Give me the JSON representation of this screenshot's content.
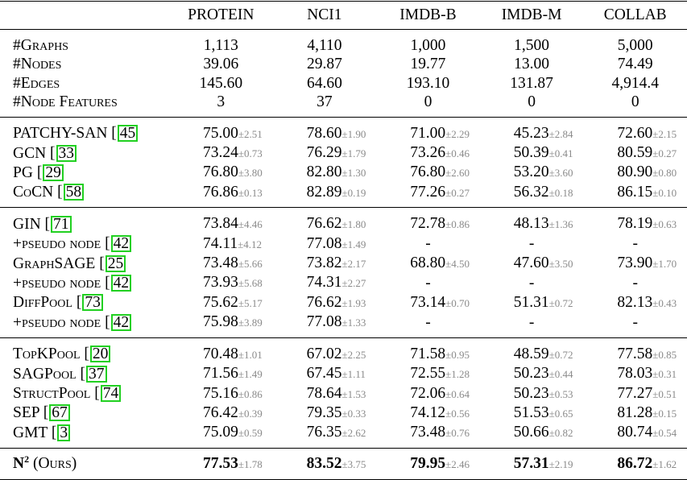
{
  "columns": [
    "PROTEIN",
    "NCI1",
    "IMDB-B",
    "IMDB-M",
    "COLLAB"
  ],
  "stats": [
    {
      "label": "#Graphs",
      "values": [
        "1,113",
        "4,110",
        "1,000",
        "1,500",
        "5,000"
      ]
    },
    {
      "label": "#Nodes",
      "values": [
        "39.06",
        "29.87",
        "19.77",
        "13.00",
        "74.49"
      ]
    },
    {
      "label": "#Edges",
      "values": [
        "145.60",
        "64.60",
        "193.10",
        "131.87",
        "4,914.4"
      ]
    },
    {
      "label": "#Node Features",
      "values": [
        "3",
        "37",
        "0",
        "0",
        "0"
      ]
    }
  ],
  "groups": [
    {
      "rows": [
        {
          "name": "PATCHY-SAN",
          "ref": "45",
          "cells": [
            [
              "75.00",
              "±2.51"
            ],
            [
              "78.60",
              "±1.90"
            ],
            [
              "71.00",
              "±2.29"
            ],
            [
              "45.23",
              "±2.84"
            ],
            [
              "72.60",
              "±2.15"
            ]
          ]
        },
        {
          "name": "GCN",
          "ref": "33",
          "cells": [
            [
              "73.24",
              "±0.73"
            ],
            [
              "76.29",
              "±1.79"
            ],
            [
              "73.26",
              "±0.46"
            ],
            [
              "50.39",
              "±0.41"
            ],
            [
              "80.59",
              "±0.27"
            ]
          ]
        },
        {
          "name": "PG",
          "ref": "29",
          "cells": [
            [
              "76.80",
              "±3.80"
            ],
            [
              "82.80",
              "±1.30"
            ],
            [
              "76.80",
              "±2.60"
            ],
            [
              "53.20",
              "±3.60"
            ],
            [
              "80.90",
              "±0.80"
            ]
          ]
        },
        {
          "name": "CoCN",
          "ref": "58",
          "cells": [
            [
              "76.86",
              "±0.13"
            ],
            [
              "82.89",
              "±0.19"
            ],
            [
              "77.26",
              "±0.27"
            ],
            [
              "56.32",
              "±0.18"
            ],
            [
              "86.15",
              "±0.10"
            ]
          ]
        }
      ]
    },
    {
      "rows": [
        {
          "name": "GIN",
          "ref": "71",
          "cells": [
            [
              "73.84",
              "±4.46"
            ],
            [
              "76.62",
              "±1.80"
            ],
            [
              "72.78",
              "±0.86"
            ],
            [
              "48.13",
              "±1.36"
            ],
            [
              "78.19",
              "±0.63"
            ]
          ]
        },
        {
          "name": "+pseudo node",
          "ref": "42",
          "cells": [
            [
              "74.11",
              "±4.12"
            ],
            [
              "77.08",
              "±1.49"
            ],
            [
              "-",
              ""
            ],
            [
              "-",
              ""
            ],
            [
              "-",
              ""
            ]
          ]
        },
        {
          "name": "GraphSAGE",
          "ref": "25",
          "cells": [
            [
              "73.48",
              "±5.66"
            ],
            [
              "73.82",
              "±2.17"
            ],
            [
              "68.80",
              "±4.50"
            ],
            [
              "47.60",
              "±3.50"
            ],
            [
              "73.90",
              "±1.70"
            ]
          ]
        },
        {
          "name": "+pseudo node",
          "ref": "42",
          "cells": [
            [
              "73.93",
              "±5.68"
            ],
            [
              "74.31",
              "±2.27"
            ],
            [
              "-",
              ""
            ],
            [
              "-",
              ""
            ],
            [
              "-",
              ""
            ]
          ]
        },
        {
          "name": "DiffPool",
          "ref": "73",
          "cells": [
            [
              "75.62",
              "±5.17"
            ],
            [
              "76.62",
              "±1.93"
            ],
            [
              "73.14",
              "±0.70"
            ],
            [
              "51.31",
              "±0.72"
            ],
            [
              "82.13",
              "±0.43"
            ]
          ]
        },
        {
          "name": "+pseudo node",
          "ref": "42",
          "cells": [
            [
              "75.98",
              "±3.89"
            ],
            [
              "77.08",
              "±1.33"
            ],
            [
              "-",
              ""
            ],
            [
              "-",
              ""
            ],
            [
              "-",
              ""
            ]
          ]
        }
      ]
    },
    {
      "rows": [
        {
          "name": "TopKPool",
          "ref": "20",
          "cells": [
            [
              "70.48",
              "±1.01"
            ],
            [
              "67.02",
              "±2.25"
            ],
            [
              "71.58",
              "±0.95"
            ],
            [
              "48.59",
              "±0.72"
            ],
            [
              "77.58",
              "±0.85"
            ]
          ]
        },
        {
          "name": "SAGPool",
          "ref": "37",
          "cells": [
            [
              "71.56",
              "±1.49"
            ],
            [
              "67.45",
              "±1.11"
            ],
            [
              "72.55",
              "±1.28"
            ],
            [
              "50.23",
              "±0.44"
            ],
            [
              "78.03",
              "±0.31"
            ]
          ]
        },
        {
          "name": "StructPool",
          "ref": "74",
          "cells": [
            [
              "75.16",
              "±0.86"
            ],
            [
              "78.64",
              "±1.53"
            ],
            [
              "72.06",
              "±0.64"
            ],
            [
              "50.23",
              "±0.53"
            ],
            [
              "77.27",
              "±0.51"
            ]
          ]
        },
        {
          "name": "SEP",
          "ref": "67",
          "cells": [
            [
              "76.42",
              "±0.39"
            ],
            [
              "79.35",
              "±0.33"
            ],
            [
              "74.12",
              "±0.56"
            ],
            [
              "51.53",
              "±0.65"
            ],
            [
              "81.28",
              "±0.15"
            ]
          ]
        },
        {
          "name": "GMT",
          "ref": "3",
          "cells": [
            [
              "75.09",
              "±0.59"
            ],
            [
              "76.35",
              "±2.62"
            ],
            [
              "73.48",
              "±0.76"
            ],
            [
              "50.66",
              "±0.82"
            ],
            [
              "80.74",
              "±0.54"
            ]
          ]
        }
      ]
    }
  ],
  "ours": {
    "name": "N",
    "sup": "2",
    "suffix": "(Ours)",
    "cells": [
      [
        "77.53",
        "±1.78"
      ],
      [
        "83.52",
        "±3.75"
      ],
      [
        "79.95",
        "±2.46"
      ],
      [
        "57.31",
        "±2.19"
      ],
      [
        "86.72",
        "±1.62"
      ]
    ]
  }
}
